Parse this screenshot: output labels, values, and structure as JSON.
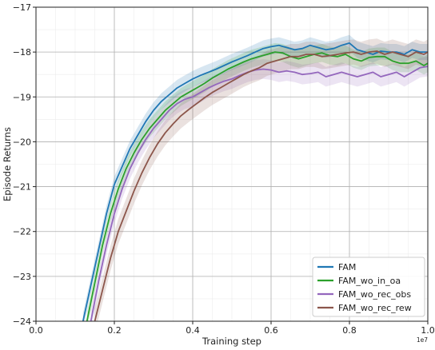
{
  "chart_data": {
    "type": "line",
    "xlabel": "Training step",
    "ylabel": "Episode Returns",
    "x_offset_label": "1e7",
    "xlim": [
      0.0,
      1.0
    ],
    "ylim": [
      -24,
      -17
    ],
    "x_ticks": [
      "0.0",
      "0.2",
      "0.4",
      "0.6",
      "0.8",
      "1.0"
    ],
    "y_ticks": [
      "−24",
      "−23",
      "−22",
      "−21",
      "−20",
      "−19",
      "−18",
      "−17"
    ],
    "x_tick_values": [
      0.0,
      0.2,
      0.4,
      0.6,
      0.8,
      1.0
    ],
    "y_tick_values": [
      -24,
      -23,
      -22,
      -21,
      -20,
      -19,
      -18,
      -17
    ],
    "grid_style": "dense-light",
    "legend_position": "lower-right",
    "series": [
      {
        "name": "FAM",
        "color": "#1f77b4",
        "band": 0.18,
        "x": [
          0.12,
          0.14,
          0.16,
          0.18,
          0.2,
          0.22,
          0.24,
          0.26,
          0.28,
          0.3,
          0.32,
          0.34,
          0.36,
          0.38,
          0.4,
          0.42,
          0.44,
          0.46,
          0.48,
          0.5,
          0.52,
          0.54,
          0.56,
          0.58,
          0.6,
          0.62,
          0.64,
          0.66,
          0.68,
          0.7,
          0.72,
          0.74,
          0.76,
          0.78,
          0.8,
          0.82,
          0.84,
          0.86,
          0.88,
          0.9,
          0.92,
          0.94,
          0.96,
          0.98,
          1.0
        ],
        "y": [
          -24.0,
          -23.2,
          -22.4,
          -21.6,
          -20.95,
          -20.55,
          -20.15,
          -19.85,
          -19.55,
          -19.3,
          -19.1,
          -18.95,
          -18.8,
          -18.7,
          -18.6,
          -18.52,
          -18.45,
          -18.38,
          -18.3,
          -18.22,
          -18.15,
          -18.08,
          -18.0,
          -17.92,
          -17.88,
          -17.85,
          -17.9,
          -17.95,
          -17.92,
          -17.85,
          -17.9,
          -17.95,
          -17.92,
          -17.85,
          -17.8,
          -17.95,
          -18.0,
          -18.05,
          -17.98,
          -18.0,
          -18.0,
          -18.05,
          -17.95,
          -18.0,
          -18.0
        ]
      },
      {
        "name": "FAM_wo_in_oa",
        "color": "#2ca02c",
        "band": 0.2,
        "x": [
          0.13,
          0.15,
          0.17,
          0.19,
          0.21,
          0.23,
          0.25,
          0.27,
          0.29,
          0.31,
          0.33,
          0.35,
          0.37,
          0.39,
          0.41,
          0.43,
          0.45,
          0.47,
          0.49,
          0.51,
          0.53,
          0.55,
          0.57,
          0.59,
          0.61,
          0.63,
          0.65,
          0.67,
          0.69,
          0.71,
          0.73,
          0.75,
          0.77,
          0.79,
          0.81,
          0.83,
          0.85,
          0.87,
          0.89,
          0.91,
          0.93,
          0.95,
          0.97,
          0.99,
          1.0
        ],
        "y": [
          -24.0,
          -23.15,
          -22.3,
          -21.6,
          -21.05,
          -20.6,
          -20.25,
          -19.95,
          -19.7,
          -19.5,
          -19.3,
          -19.15,
          -19.0,
          -18.9,
          -18.8,
          -18.7,
          -18.58,
          -18.48,
          -18.38,
          -18.3,
          -18.22,
          -18.15,
          -18.1,
          -18.05,
          -18.0,
          -18.02,
          -18.1,
          -18.15,
          -18.1,
          -18.05,
          -18.02,
          -18.08,
          -18.1,
          -18.05,
          -18.15,
          -18.2,
          -18.12,
          -18.1,
          -18.1,
          -18.2,
          -18.25,
          -18.25,
          -18.2,
          -18.3,
          -18.25
        ]
      },
      {
        "name": "FAM_wo_rec_obs",
        "color": "#9467bd",
        "band": 0.22,
        "x": [
          0.14,
          0.16,
          0.18,
          0.2,
          0.22,
          0.24,
          0.26,
          0.28,
          0.3,
          0.32,
          0.34,
          0.36,
          0.38,
          0.4,
          0.42,
          0.44,
          0.46,
          0.48,
          0.5,
          0.52,
          0.54,
          0.56,
          0.58,
          0.6,
          0.62,
          0.64,
          0.66,
          0.68,
          0.7,
          0.72,
          0.74,
          0.76,
          0.78,
          0.8,
          0.82,
          0.84,
          0.86,
          0.88,
          0.9,
          0.92,
          0.94,
          0.96,
          0.98,
          1.0
        ],
        "y": [
          -24.0,
          -23.1,
          -22.3,
          -21.6,
          -21.05,
          -20.6,
          -20.25,
          -19.95,
          -19.7,
          -19.5,
          -19.3,
          -19.15,
          -19.05,
          -19.0,
          -18.9,
          -18.8,
          -18.72,
          -18.65,
          -18.6,
          -18.52,
          -18.45,
          -18.4,
          -18.38,
          -18.4,
          -18.45,
          -18.42,
          -18.45,
          -18.5,
          -18.48,
          -18.45,
          -18.55,
          -18.5,
          -18.45,
          -18.5,
          -18.55,
          -18.5,
          -18.45,
          -18.55,
          -18.5,
          -18.45,
          -18.55,
          -18.45,
          -18.35,
          -18.32
        ]
      },
      {
        "name": "FAM_wo_rec_rew",
        "color": "#8c564b",
        "band": 0.28,
        "x": [
          0.15,
          0.17,
          0.19,
          0.21,
          0.23,
          0.25,
          0.27,
          0.29,
          0.31,
          0.33,
          0.35,
          0.37,
          0.39,
          0.41,
          0.43,
          0.45,
          0.47,
          0.49,
          0.51,
          0.53,
          0.55,
          0.57,
          0.59,
          0.61,
          0.63,
          0.65,
          0.67,
          0.69,
          0.71,
          0.73,
          0.75,
          0.77,
          0.79,
          0.81,
          0.83,
          0.85,
          0.87,
          0.89,
          0.91,
          0.93,
          0.95,
          0.97,
          0.99,
          1.0
        ],
        "y": [
          -24.0,
          -23.3,
          -22.6,
          -22.0,
          -21.55,
          -21.1,
          -20.7,
          -20.35,
          -20.05,
          -19.8,
          -19.6,
          -19.42,
          -19.28,
          -19.15,
          -19.02,
          -18.9,
          -18.8,
          -18.7,
          -18.6,
          -18.5,
          -18.42,
          -18.35,
          -18.25,
          -18.2,
          -18.15,
          -18.1,
          -18.1,
          -18.05,
          -18.05,
          -18.1,
          -18.08,
          -18.05,
          -18.02,
          -18.0,
          -18.05,
          -18.0,
          -17.98,
          -18.05,
          -18.0,
          -18.05,
          -18.1,
          -18.0,
          -18.05,
          -18.0
        ]
      }
    ]
  }
}
